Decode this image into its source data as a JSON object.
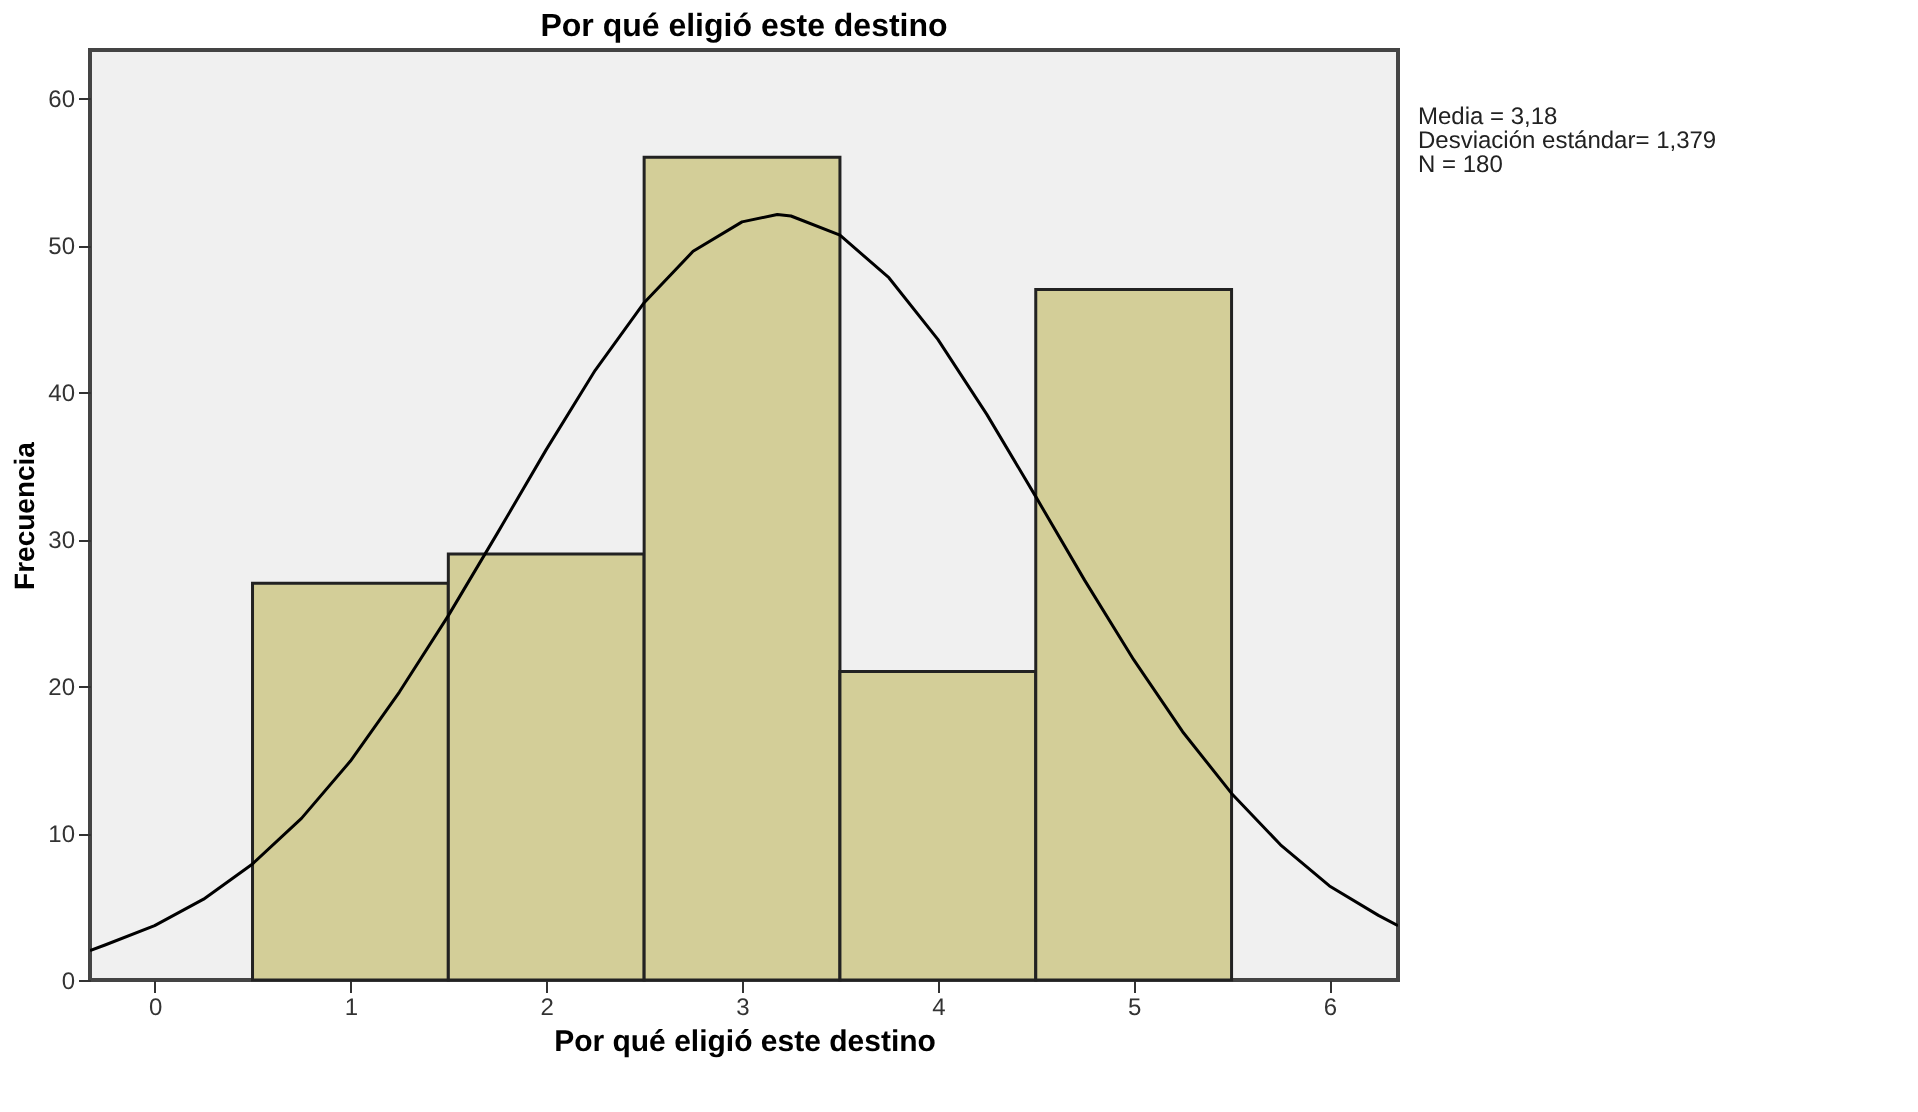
{
  "chart_data": {
    "type": "histogram",
    "title": "Por qué eligió este destino",
    "xlabel": "Por qué eligió este destino",
    "ylabel": "Frecuencia",
    "bins": [
      0.5,
      1.5,
      2.5,
      3.5,
      4.5,
      5.5
    ],
    "values": [
      27,
      29,
      56,
      21,
      47
    ],
    "color": "#d3ce98",
    "series": [
      {
        "type": "line",
        "color": "#000000",
        "x": [
          -0.33,
          -0.25,
          0,
          0.25,
          0.5,
          0.75,
          1,
          1.25,
          1.5,
          1.75,
          2,
          2.25,
          2.5,
          2.75,
          3,
          3.18,
          3.25,
          3.5,
          3.75,
          4,
          4.25,
          4.5,
          4.75,
          5,
          5.25,
          5.5,
          5.75,
          6,
          6.25,
          6.35
        ],
        "values": [
          2.0,
          2.4,
          3.7,
          5.5,
          7.9,
          11.0,
          14.9,
          19.6,
          24.8,
          30.4,
          36.1,
          41.5,
          46.1,
          49.6,
          51.6,
          52.1,
          52.0,
          50.7,
          47.8,
          43.6,
          38.5,
          32.9,
          27.2,
          21.8,
          16.9,
          12.7,
          9.2,
          6.4,
          4.4,
          3.7
        ]
      }
    ],
    "xlim": [
      -0.33,
      6.35
    ],
    "ylim": [
      0,
      63.3
    ],
    "xticks": [
      0,
      1,
      2,
      3,
      4,
      5,
      6
    ],
    "yticks": [
      0,
      10,
      20,
      30,
      40,
      50,
      60
    ],
    "grid": false,
    "annotations": [
      "Media = 3,18",
      "Desviación estándar= 1,379",
      "N = 180"
    ]
  }
}
